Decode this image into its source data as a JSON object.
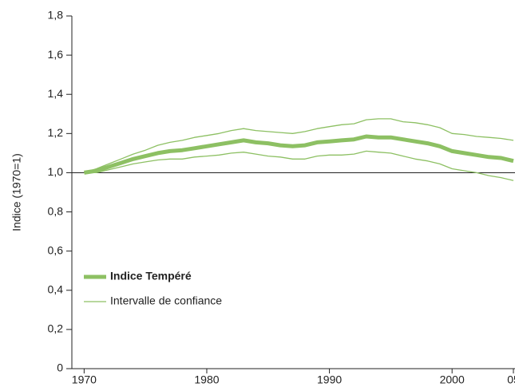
{
  "chart_data": {
    "type": "line",
    "y_label": "Indice (1970=1)",
    "x": [
      1970,
      1971,
      1972,
      1973,
      1974,
      1975,
      1976,
      1977,
      1978,
      1979,
      1980,
      1981,
      1982,
      1983,
      1984,
      1985,
      1986,
      1987,
      1988,
      1989,
      1990,
      1991,
      1992,
      1993,
      1994,
      1995,
      1996,
      1997,
      1998,
      1999,
      2000,
      2001,
      2002,
      2003,
      2004,
      2005
    ],
    "series": [
      {
        "name": "Indice Tempéré",
        "color": "#8dc063",
        "values": [
          1.0,
          1.01,
          1.03,
          1.05,
          1.07,
          1.085,
          1.1,
          1.11,
          1.115,
          1.125,
          1.135,
          1.145,
          1.155,
          1.165,
          1.155,
          1.15,
          1.14,
          1.135,
          1.14,
          1.155,
          1.16,
          1.165,
          1.17,
          1.185,
          1.18,
          1.18,
          1.17,
          1.16,
          1.15,
          1.135,
          1.11,
          1.1,
          1.09,
          1.08,
          1.075,
          1.06
        ]
      },
      {
        "name": "Intervalle de confiance",
        "color": "#8dc063",
        "upper": [
          1.0,
          1.02,
          1.045,
          1.07,
          1.095,
          1.115,
          1.14,
          1.155,
          1.165,
          1.18,
          1.19,
          1.2,
          1.215,
          1.225,
          1.215,
          1.21,
          1.205,
          1.2,
          1.21,
          1.225,
          1.235,
          1.245,
          1.25,
          1.27,
          1.275,
          1.275,
          1.26,
          1.255,
          1.245,
          1.23,
          1.2,
          1.195,
          1.185,
          1.18,
          1.175,
          1.165
        ],
        "lower": [
          1.0,
          1.0,
          1.015,
          1.03,
          1.045,
          1.055,
          1.065,
          1.07,
          1.07,
          1.08,
          1.085,
          1.09,
          1.1,
          1.105,
          1.095,
          1.085,
          1.08,
          1.07,
          1.07,
          1.085,
          1.09,
          1.09,
          1.095,
          1.11,
          1.105,
          1.1,
          1.085,
          1.07,
          1.06,
          1.045,
          1.02,
          1.01,
          1.0,
          0.985,
          0.975,
          0.96
        ]
      }
    ],
    "reference_line": 1,
    "xlim": [
      1969,
      2005
    ],
    "xticks": [
      1970,
      1980,
      1990,
      2000,
      {
        "value": 2005,
        "label": "05"
      }
    ],
    "ylim": [
      0,
      1.8
    ],
    "yticks": [
      0,
      {
        "value": 0.2,
        "label": "0,2"
      },
      {
        "value": 0.4,
        "label": "0,4"
      },
      {
        "value": 0.6,
        "label": "0,6"
      },
      {
        "value": 0.8,
        "label": "0,8"
      },
      {
        "value": 1,
        "label": "1,0"
      },
      {
        "value": 1.2,
        "label": "1,2"
      },
      {
        "value": 1.4,
        "label": "1,4"
      },
      {
        "value": 1.6,
        "label": "1,6"
      },
      {
        "value": 1.8,
        "label": "1,8"
      }
    ]
  }
}
